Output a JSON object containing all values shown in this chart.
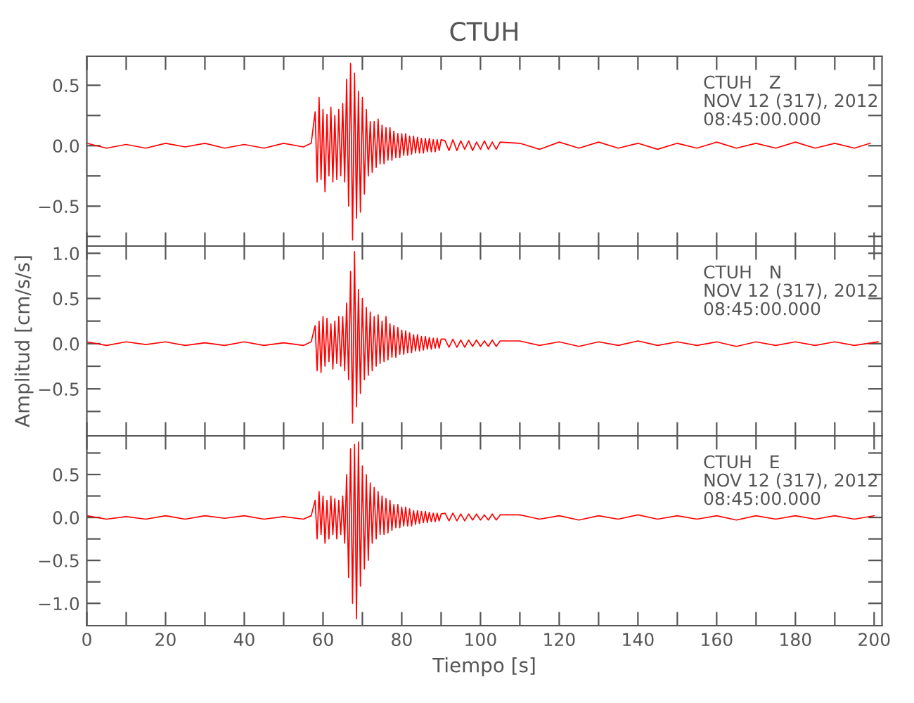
{
  "chart_data": [
    {
      "type": "line",
      "title": "CTUH",
      "annotations": [
        "CTUH   Z\nNOV 12 (317), 2012\n08:45:00.000"
      ],
      "tick_labels": "y",
      "grid": false,
      "line_style": "solid",
      "xlim": [
        0,
        202
      ],
      "ylim": [
        -0.83,
        0.74
      ],
      "xticks": [
        0,
        {
          "value": 10,
          "label": null
        },
        20,
        {
          "value": 30,
          "label": null
        },
        40,
        {
          "value": 50,
          "label": null
        },
        60,
        {
          "value": 70,
          "label": null
        },
        80,
        {
          "value": 90,
          "label": null
        },
        100,
        {
          "value": 110,
          "label": null
        },
        120,
        {
          "value": 130,
          "label": null
        },
        140,
        {
          "value": 150,
          "label": null
        },
        160,
        {
          "value": 170,
          "label": null
        },
        180,
        {
          "value": 190,
          "label": null
        },
        200
      ],
      "yticks": [
        {
          "value": -0.75,
          "label": null
        },
        {
          "value": -0.5,
          "label": "−0.5"
        },
        {
          "value": -0.25,
          "label": null
        },
        {
          "value": 0,
          "label": "0.0"
        },
        {
          "value": 0.25,
          "label": null
        },
        {
          "value": 0.5,
          "label": "0.5"
        }
      ],
      "x": [
        0,
        5,
        10,
        15,
        20,
        25,
        30,
        35,
        40,
        45,
        50,
        55,
        57,
        58,
        58.5,
        59,
        59.5,
        60,
        60.5,
        61,
        61.5,
        62,
        62.5,
        63,
        63.5,
        64,
        64.5,
        65,
        65.5,
        66,
        66.5,
        67,
        67.5,
        68,
        68.5,
        69,
        69.5,
        70,
        70.5,
        71,
        71.5,
        72,
        72.5,
        73,
        73.5,
        74,
        74.5,
        75,
        75.5,
        76,
        76.5,
        77,
        77.5,
        78,
        78.5,
        79,
        79.5,
        80,
        80.5,
        81,
        81.5,
        82,
        82.5,
        83,
        83.5,
        84,
        84.5,
        85,
        85.5,
        86,
        86.5,
        87,
        87.5,
        88,
        88.5,
        89,
        89.5,
        90,
        91,
        92,
        93,
        94,
        95,
        96,
        97,
        98,
        99,
        100,
        101,
        102,
        103,
        104,
        105,
        110,
        115,
        120,
        125,
        130,
        135,
        140,
        145,
        150,
        155,
        160,
        165,
        170,
        175,
        180,
        185,
        190,
        195,
        199
      ],
      "series": [
        {
          "color": "#ff0000",
          "values": [
            0.02,
            -0.02,
            0.01,
            -0.02,
            0.02,
            -0.01,
            0.02,
            -0.02,
            0.01,
            -0.02,
            0.02,
            -0.01,
            0.02,
            0.28,
            -0.3,
            0.4,
            -0.28,
            0.3,
            -0.38,
            0.26,
            -0.25,
            0.32,
            -0.3,
            0.25,
            -0.28,
            0.3,
            -0.25,
            0.35,
            -0.3,
            0.55,
            -0.5,
            0.68,
            -0.78,
            0.6,
            -0.6,
            0.45,
            -0.55,
            0.4,
            -0.4,
            0.3,
            -0.25,
            0.2,
            -0.22,
            0.2,
            -0.18,
            0.22,
            -0.15,
            0.17,
            -0.15,
            0.15,
            -0.12,
            0.15,
            -0.12,
            0.12,
            -0.1,
            0.1,
            -0.1,
            0.1,
            -0.08,
            0.1,
            -0.08,
            0.08,
            -0.07,
            0.08,
            -0.06,
            0.07,
            -0.06,
            0.06,
            -0.06,
            0.06,
            -0.05,
            0.06,
            -0.05,
            0.05,
            -0.05,
            0.05,
            -0.04,
            0.05,
            0.04,
            -0.04,
            0.05,
            -0.04,
            0.04,
            -0.03,
            0.04,
            -0.04,
            0.03,
            -0.03,
            0.04,
            -0.03,
            0.03,
            -0.03,
            0.03,
            0.02,
            -0.03,
            0.03,
            -0.02,
            0.03,
            -0.02,
            0.02,
            -0.03,
            0.02,
            -0.02,
            0.03,
            -0.02,
            0.02,
            -0.02,
            0.03,
            -0.02,
            0.02,
            -0.02,
            0.02
          ]
        }
      ]
    },
    {
      "type": "line",
      "ylabel": "Amplitud [cm/s/s]",
      "annotations": [
        "CTUH   N\nNOV 12 (317), 2012\n08:45:00.000"
      ],
      "tick_labels": "y",
      "grid": false,
      "line_style": "solid",
      "xlim": [
        0,
        202
      ],
      "ylim": [
        -1.02,
        1.08
      ],
      "xticks": [
        0,
        {
          "value": 10,
          "label": null
        },
        20,
        {
          "value": 30,
          "label": null
        },
        40,
        {
          "value": 50,
          "label": null
        },
        60,
        {
          "value": 70,
          "label": null
        },
        80,
        {
          "value": 90,
          "label": null
        },
        100,
        {
          "value": 110,
          "label": null
        },
        120,
        {
          "value": 130,
          "label": null
        },
        140,
        {
          "value": 150,
          "label": null
        },
        160,
        {
          "value": 170,
          "label": null
        },
        180,
        {
          "value": 190,
          "label": null
        },
        200
      ],
      "yticks": [
        {
          "value": -0.75,
          "label": null
        },
        {
          "value": -0.5,
          "label": "−0.5"
        },
        {
          "value": -0.25,
          "label": null
        },
        {
          "value": 0,
          "label": "0.0"
        },
        {
          "value": 0.25,
          "label": null
        },
        {
          "value": 0.5,
          "label": "0.5"
        },
        {
          "value": 0.75,
          "label": null
        },
        {
          "value": 1.0,
          "label": "1.0"
        }
      ],
      "x": [
        0,
        5,
        10,
        15,
        20,
        25,
        30,
        35,
        40,
        45,
        50,
        55,
        57,
        58,
        58.5,
        59,
        59.5,
        60,
        60.5,
        61,
        61.5,
        62,
        62.5,
        63,
        63.5,
        64,
        64.5,
        65,
        65.5,
        66,
        66.5,
        67,
        67.5,
        68,
        68.5,
        69,
        69.5,
        70,
        70.5,
        71,
        71.5,
        72,
        72.5,
        73,
        73.5,
        74,
        74.5,
        75,
        75.5,
        76,
        76.5,
        77,
        77.5,
        78,
        78.5,
        79,
        79.5,
        80,
        80.5,
        81,
        81.5,
        82,
        82.5,
        83,
        83.5,
        84,
        84.5,
        85,
        85.5,
        86,
        86.5,
        87,
        87.5,
        88,
        88.5,
        89,
        89.5,
        90,
        91,
        92,
        93,
        94,
        95,
        96,
        97,
        98,
        99,
        100,
        101,
        102,
        103,
        104,
        105,
        110,
        115,
        120,
        125,
        130,
        135,
        140,
        145,
        150,
        155,
        160,
        165,
        170,
        175,
        180,
        185,
        190,
        195,
        201
      ],
      "series": [
        {
          "color": "#ff0000",
          "values": [
            0.02,
            -0.02,
            0.02,
            -0.01,
            0.02,
            -0.02,
            0.01,
            -0.02,
            0.02,
            -0.02,
            0.01,
            -0.02,
            0.02,
            0.2,
            -0.3,
            0.25,
            -0.32,
            0.3,
            -0.25,
            0.28,
            -0.2,
            0.22,
            -0.28,
            0.25,
            -0.22,
            0.3,
            -0.25,
            0.3,
            -0.3,
            0.45,
            -0.4,
            0.8,
            -0.88,
            1.02,
            -0.7,
            0.6,
            -0.55,
            0.5,
            -0.4,
            0.4,
            -0.35,
            0.35,
            -0.3,
            0.3,
            -0.25,
            0.32,
            -0.22,
            0.25,
            -0.2,
            0.3,
            -0.18,
            0.22,
            -0.15,
            0.2,
            -0.15,
            0.18,
            -0.12,
            0.15,
            -0.12,
            0.14,
            -0.1,
            0.12,
            -0.1,
            0.1,
            -0.08,
            0.1,
            -0.08,
            0.08,
            -0.07,
            0.08,
            -0.06,
            0.07,
            -0.06,
            0.06,
            -0.05,
            0.06,
            -0.05,
            0.05,
            0.05,
            -0.04,
            0.05,
            -0.04,
            0.04,
            -0.04,
            0.04,
            -0.03,
            0.04,
            -0.03,
            0.03,
            -0.03,
            0.04,
            -0.03,
            0.03,
            0.03,
            -0.02,
            0.02,
            -0.03,
            0.02,
            -0.02,
            0.03,
            -0.02,
            0.02,
            -0.02,
            0.02,
            -0.03,
            0.02,
            -0.02,
            0.02,
            -0.02,
            0.02,
            -0.02,
            0.02
          ]
        }
      ]
    },
    {
      "type": "line",
      "xlabel": "Tiempo [s]",
      "annotations": [
        "CTUH   E\nNOV 12 (317), 2012\n08:45:00.000"
      ],
      "grid": false,
      "line_style": "solid",
      "xlim": [
        0,
        202
      ],
      "ylim": [
        -1.26,
        0.95
      ],
      "xticks": [
        0,
        {
          "value": 10,
          "label": null
        },
        20,
        {
          "value": 30,
          "label": null
        },
        40,
        {
          "value": 50,
          "label": null
        },
        60,
        {
          "value": 70,
          "label": null
        },
        80,
        {
          "value": 90,
          "label": null
        },
        100,
        {
          "value": 110,
          "label": null
        },
        120,
        {
          "value": 130,
          "label": null
        },
        140,
        {
          "value": 150,
          "label": null
        },
        160,
        {
          "value": 170,
          "label": null
        },
        180,
        {
          "value": 190,
          "label": null
        },
        200
      ],
      "yticks": [
        {
          "value": -1.0,
          "label": "−1.0"
        },
        {
          "value": -0.75,
          "label": null
        },
        {
          "value": -0.5,
          "label": "−0.5"
        },
        {
          "value": -0.25,
          "label": null
        },
        {
          "value": 0,
          "label": "0.0"
        },
        {
          "value": 0.25,
          "label": null
        },
        {
          "value": 0.5,
          "label": "0.5"
        },
        {
          "value": 0.75,
          "label": null
        }
      ],
      "x": [
        0,
        5,
        10,
        15,
        20,
        25,
        30,
        35,
        40,
        45,
        50,
        55,
        57,
        58,
        58.5,
        59,
        59.5,
        60,
        60.5,
        61,
        61.5,
        62,
        62.5,
        63,
        63.5,
        64,
        64.5,
        65,
        65.5,
        66,
        66.5,
        67,
        67.5,
        68,
        68.5,
        69,
        69.5,
        70,
        70.5,
        71,
        71.5,
        72,
        72.5,
        73,
        73.5,
        74,
        74.5,
        75,
        75.5,
        76,
        76.5,
        77,
        77.5,
        78,
        78.5,
        79,
        79.5,
        80,
        80.5,
        81,
        81.5,
        82,
        82.5,
        83,
        83.5,
        84,
        84.5,
        85,
        85.5,
        86,
        86.5,
        87,
        87.5,
        88,
        88.5,
        89,
        89.5,
        90,
        91,
        92,
        93,
        94,
        95,
        96,
        97,
        98,
        99,
        100,
        101,
        102,
        103,
        104,
        105,
        110,
        115,
        120,
        125,
        130,
        135,
        140,
        145,
        150,
        155,
        160,
        165,
        170,
        175,
        180,
        185,
        190,
        195,
        200
      ],
      "series": [
        {
          "color": "#ff0000",
          "values": [
            0.02,
            -0.02,
            0.01,
            -0.02,
            0.02,
            -0.02,
            0.02,
            -0.01,
            0.02,
            -0.02,
            0.01,
            -0.02,
            0.02,
            0.2,
            -0.25,
            0.3,
            -0.2,
            0.25,
            -0.3,
            0.2,
            -0.25,
            0.25,
            -0.2,
            0.22,
            -0.25,
            0.2,
            -0.2,
            0.25,
            -0.3,
            0.5,
            -0.7,
            0.8,
            -1.0,
            0.85,
            -1.18,
            0.88,
            -0.8,
            0.6,
            -0.6,
            0.5,
            -0.5,
            0.4,
            -0.3,
            0.35,
            -0.25,
            0.3,
            -0.2,
            0.25,
            -0.2,
            0.22,
            -0.18,
            0.2,
            -0.15,
            0.15,
            -0.12,
            0.15,
            -0.12,
            0.12,
            -0.1,
            0.12,
            -0.1,
            0.1,
            -0.1,
            0.08,
            -0.08,
            0.08,
            -0.07,
            0.07,
            -0.06,
            0.07,
            -0.06,
            0.06,
            -0.05,
            0.05,
            -0.05,
            0.05,
            -0.04,
            0.04,
            0.05,
            -0.04,
            0.05,
            -0.04,
            0.04,
            -0.04,
            0.04,
            -0.03,
            0.04,
            -0.03,
            0.03,
            -0.03,
            0.04,
            -0.03,
            0.03,
            0.03,
            -0.02,
            0.02,
            -0.03,
            0.02,
            -0.02,
            0.03,
            -0.02,
            0.02,
            -0.02,
            0.02,
            -0.03,
            0.02,
            -0.02,
            0.02,
            -0.02,
            0.02,
            -0.02,
            0.02
          ]
        }
      ]
    }
  ]
}
